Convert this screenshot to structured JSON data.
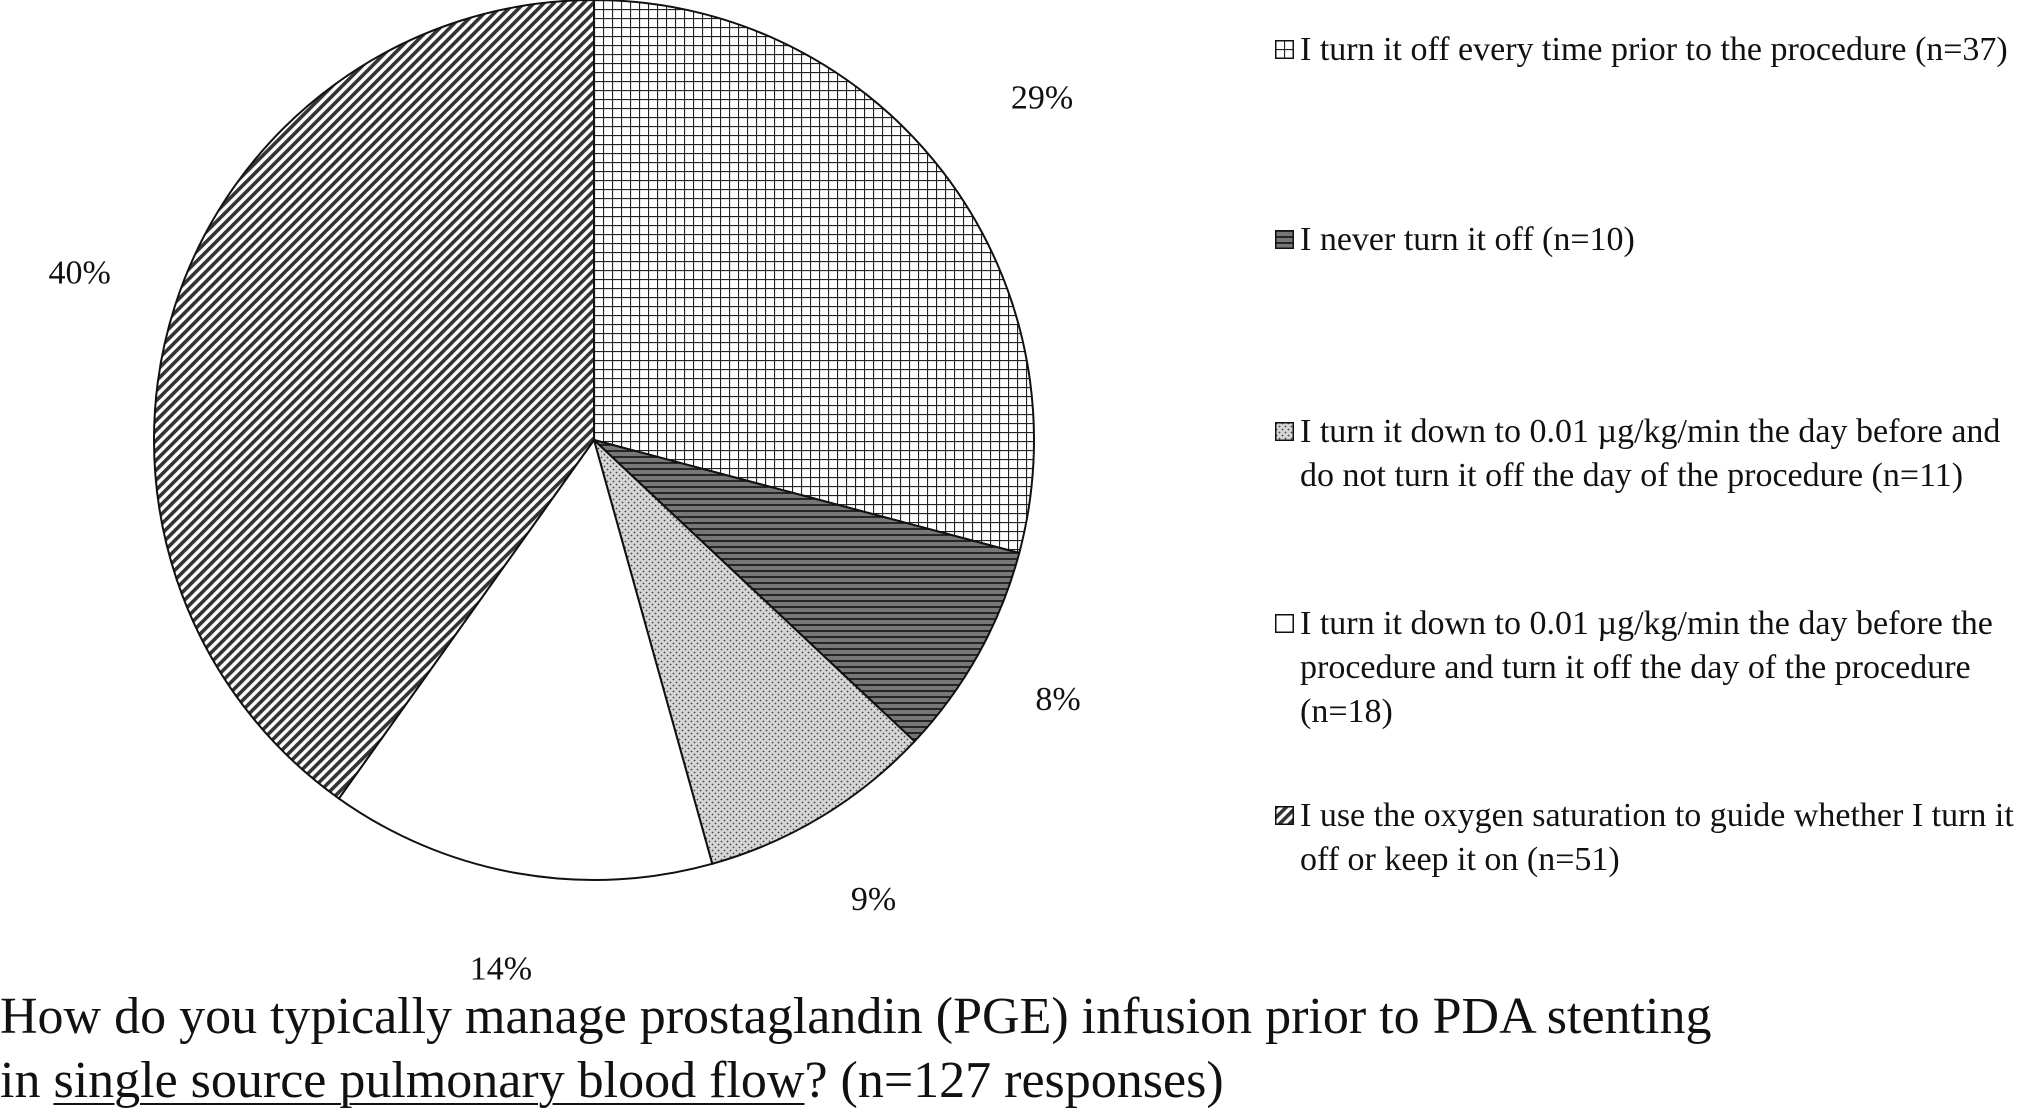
{
  "chart_data": {
    "type": "pie",
    "start_angle_deg": 0,
    "direction": "clockwise",
    "slices": [
      {
        "label": "I turn it off every time prior to the procedure (n=37)",
        "percent_label": "29%",
        "value": 37,
        "pattern": "grid"
      },
      {
        "label": "I never turn it off (n=10)",
        "percent_label": "8%",
        "value": 10,
        "pattern": "hlines-dark"
      },
      {
        "label": "I turn it down to 0.01 µg/kg/min the day before and do not turn it off the day of the procedure (n=11)",
        "percent_label": "9%",
        "value": 11,
        "pattern": "dots"
      },
      {
        "label": "I turn it down to 0.01 µg/kg/min the day before the procedure and turn it off the day of the procedure (n=18)",
        "percent_label": "14%",
        "value": 18,
        "pattern": "white"
      },
      {
        "label": "I use the oxygen saturation to guide whether I turn it off or keep it on (n=51)",
        "percent_label": "40%",
        "value": 51,
        "pattern": "diagonal"
      }
    ]
  },
  "question": {
    "line1": "How do you typically manage prostaglandin (PGE) infusion prior to PDA stenting",
    "line2_prefix": "in ",
    "line2_underlined": "single source pulmonary blood flow",
    "line2_suffix": "? (n=127 responses)"
  }
}
